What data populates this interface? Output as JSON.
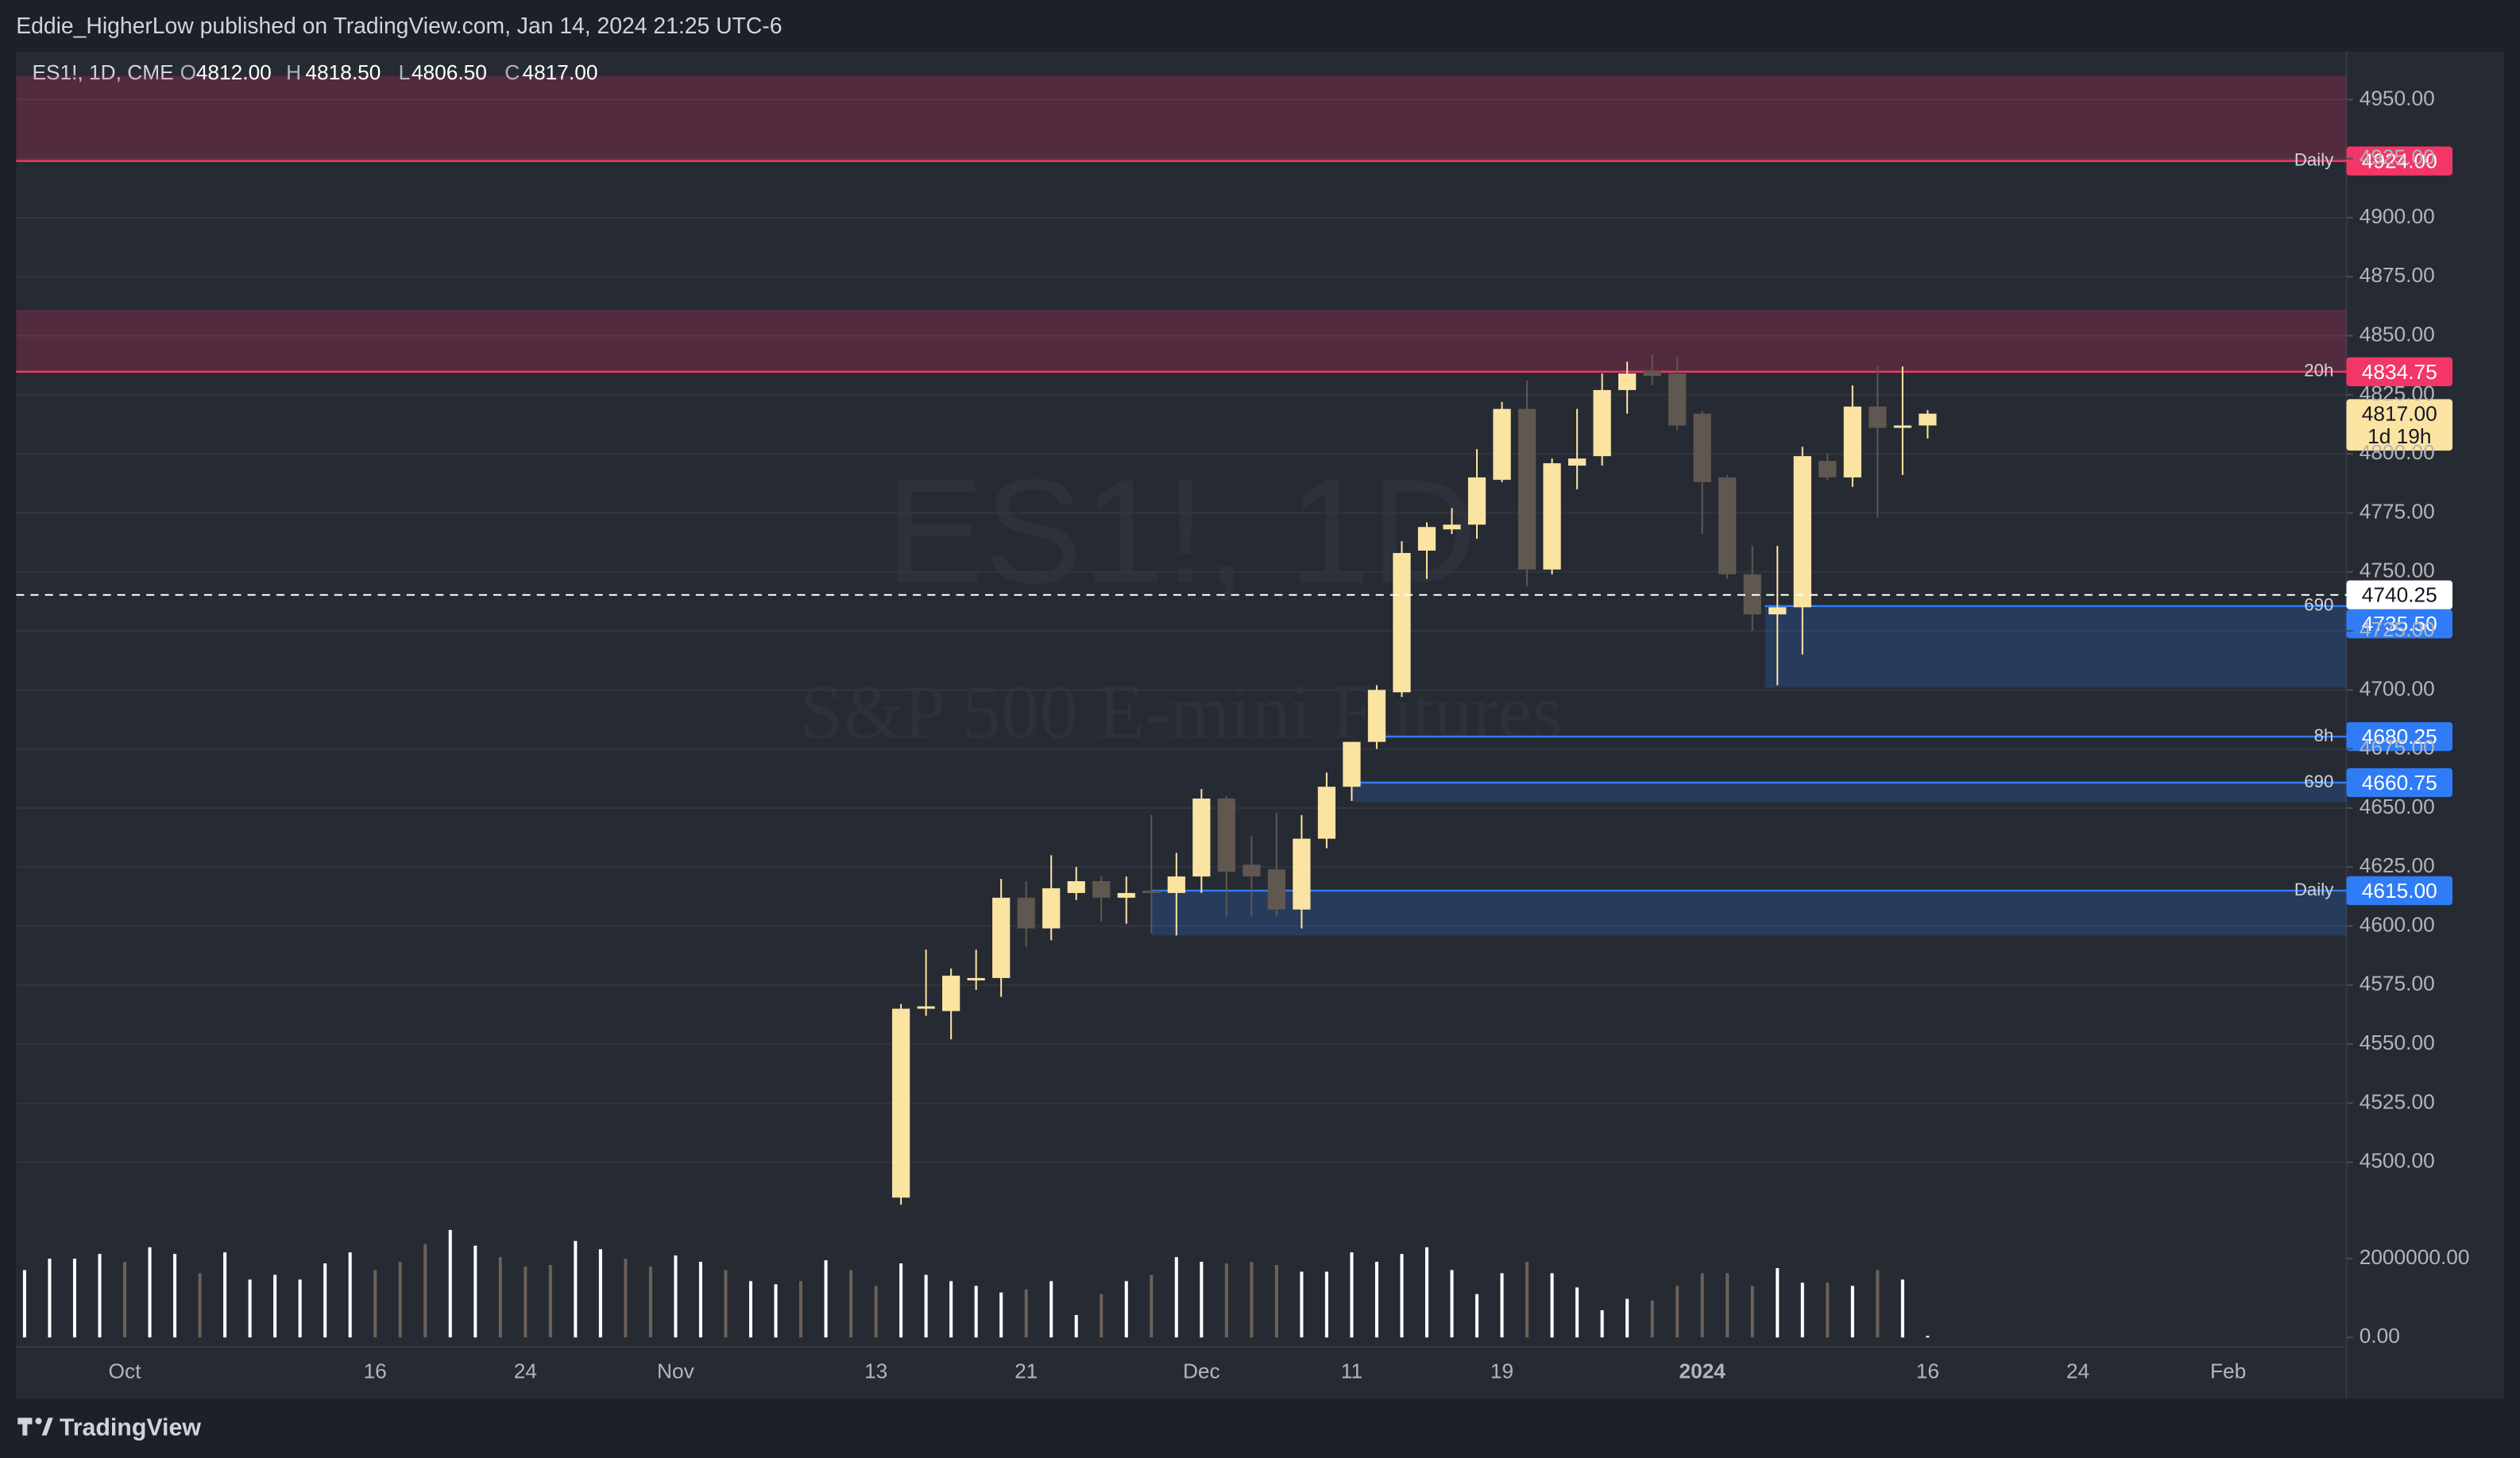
{
  "header": {
    "publisher": "Eddie_HigherLow published on TradingView.com, Jan 14, 2024 21:25 UTC-6"
  },
  "footer": {
    "brand": "TradingView"
  },
  "chart_data": {
    "type": "candlestick",
    "symbol": "ES1!, 1D, CME",
    "legend_items": [
      {
        "key": "O",
        "value_label": "4812.00"
      },
      {
        "key": "H",
        "value_label": "4818.50"
      },
      {
        "key": "L",
        "value_label": "4806.50"
      },
      {
        "key": "C",
        "value_label": "4817.00"
      }
    ],
    "watermark": [
      "ES1!, 1D",
      "S&P 500 E-mini Futures"
    ],
    "categories": [
      null,
      null,
      null,
      null,
      "Oct",
      null,
      null,
      null,
      null,
      null,
      null,
      null,
      null,
      null,
      "16",
      null,
      null,
      null,
      null,
      null,
      "24",
      null,
      null,
      null,
      null,
      null,
      "Nov",
      null,
      null,
      null,
      null,
      null,
      null,
      null,
      "13",
      null,
      null,
      null,
      null,
      null,
      "21",
      null,
      null,
      null,
      null,
      null,
      null,
      "Dec",
      null,
      null,
      null,
      null,
      null,
      "11",
      null,
      null,
      null,
      null,
      null,
      "19",
      null,
      null,
      null,
      null,
      null,
      null,
      null,
      "2024",
      null,
      null,
      null,
      null,
      null,
      null,
      null,
      null,
      "16",
      null,
      null,
      null,
      null,
      null,
      "24",
      null,
      null,
      null,
      null,
      null,
      "Feb",
      null,
      null,
      null,
      null
    ],
    "open": [
      null,
      null,
      null,
      null,
      null,
      null,
      null,
      null,
      null,
      null,
      null,
      null,
      null,
      null,
      null,
      null,
      null,
      null,
      null,
      null,
      null,
      null,
      null,
      null,
      null,
      null,
      null,
      null,
      null,
      null,
      null,
      null,
      null,
      null,
      null,
      4485,
      4565,
      4564,
      4577,
      4578,
      4612,
      4599,
      4614,
      4619,
      4612,
      4615,
      4614,
      4621,
      4654,
      4626,
      4624,
      4607,
      4637,
      4659,
      4678,
      4699,
      4759,
      4768,
      4770,
      4789,
      4819,
      4751,
      4795,
      4799,
      4827,
      4835,
      4834,
      4817,
      4790,
      4749,
      4732,
      4735,
      4797,
      4790,
      4820,
      4811,
      4812,
      null,
      null,
      null,
      null,
      null,
      null,
      null,
      null,
      null,
      null,
      null,
      null,
      null,
      null,
      null,
      null
    ],
    "high": [
      null,
      null,
      null,
      null,
      null,
      null,
      null,
      null,
      null,
      null,
      null,
      null,
      null,
      null,
      null,
      null,
      null,
      null,
      null,
      null,
      null,
      null,
      null,
      null,
      null,
      null,
      null,
      null,
      null,
      null,
      null,
      null,
      null,
      null,
      null,
      4567,
      4590,
      4582,
      4590,
      4620,
      4619,
      4630,
      4625,
      4621,
      4621,
      4647,
      4631,
      4658,
      4655,
      4638,
      4648,
      4647,
      4665,
      4678,
      4702,
      4763,
      4771,
      4777,
      4802,
      4822,
      4831,
      4798,
      4819,
      4834,
      4839,
      4842,
      4841,
      4818,
      4791,
      4761,
      4761,
      4803,
      4800,
      4829,
      4837,
      4837,
      4818.5,
      null,
      null,
      null,
      null,
      null,
      null,
      null,
      null,
      null,
      null,
      null,
      null,
      null,
      null,
      null,
      null
    ],
    "low": [
      null,
      null,
      null,
      null,
      null,
      null,
      null,
      null,
      null,
      null,
      null,
      null,
      null,
      null,
      null,
      null,
      null,
      null,
      null,
      null,
      null,
      null,
      null,
      null,
      null,
      null,
      null,
      null,
      null,
      null,
      null,
      null,
      null,
      null,
      null,
      4482,
      4562,
      4552,
      4573,
      4570,
      4591,
      4594,
      4611,
      4602,
      4601,
      4597,
      4596,
      4614,
      4604,
      4604,
      4604,
      4599,
      4633,
      4653,
      4675,
      4697,
      4747,
      4766,
      4764,
      4788,
      4744,
      4749,
      4785,
      4795,
      4817,
      4829,
      4810,
      4766,
      4747,
      4725,
      4702,
      4715,
      4789,
      4786,
      4773,
      4791,
      4806.5,
      null,
      null,
      null,
      null,
      null,
      null,
      null,
      null,
      null,
      null,
      null,
      null,
      null,
      null,
      null,
      null
    ],
    "close": [
      null,
      null,
      null,
      null,
      null,
      null,
      null,
      null,
      null,
      null,
      null,
      null,
      null,
      null,
      null,
      null,
      null,
      null,
      null,
      null,
      null,
      null,
      null,
      null,
      null,
      null,
      null,
      null,
      null,
      null,
      null,
      null,
      null,
      null,
      null,
      4565,
      4566,
      4579,
      4578,
      4612,
      4599,
      4616,
      4619,
      4612,
      4614,
      4614,
      4621,
      4654,
      4623,
      4621,
      4607,
      4637,
      4659,
      4678,
      4700,
      4758,
      4769,
      4770,
      4790,
      4819,
      4751,
      4796,
      4798,
      4827,
      4834,
      4833,
      4812,
      4788,
      4749,
      4732,
      4735,
      4799,
      4790,
      4820,
      4811,
      4812,
      4817,
      null,
      null,
      null,
      null,
      null,
      null,
      null,
      null,
      null,
      null,
      null,
      null,
      null,
      null,
      null,
      null
    ],
    "up_color": "#fbe3a2",
    "down_color": "#5f5750",
    "ylim": [
      4474.8,
      4970.4
    ],
    "yticks": [
      {
        "value": 4500,
        "label": "4500.00"
      },
      {
        "value": 4525,
        "label": "4525.00"
      },
      {
        "value": 4550,
        "label": "4550.00"
      },
      {
        "value": 4575,
        "label": "4575.00"
      },
      {
        "value": 4600,
        "label": "4600.00"
      },
      {
        "value": 4625,
        "label": "4625.00"
      },
      {
        "value": 4650,
        "label": "4650.00"
      },
      {
        "value": 4675,
        "label": "4675.00"
      },
      {
        "value": 4700,
        "label": "4700.00"
      },
      {
        "value": 4725,
        "label": "4725.00"
      },
      {
        "value": 4750,
        "label": "4750.00"
      },
      {
        "value": 4775,
        "label": "4775.00"
      },
      {
        "value": 4800,
        "label": "4800.00"
      },
      {
        "value": 4825,
        "label": "4825.00"
      },
      {
        "value": 4850,
        "label": "4850.00"
      },
      {
        "value": 4875,
        "label": "4875.00"
      },
      {
        "value": 4900,
        "label": "4900.00"
      },
      {
        "value": 4925,
        "label": "4925.00"
      },
      {
        "value": 4950,
        "label": "4950.00"
      }
    ],
    "grid": true,
    "volume": {
      "values": [
        1710000,
        2000000,
        2000000,
        2120000,
        1920000,
        2290000,
        2120000,
        1630000,
        2160000,
        1470000,
        1590000,
        1470000,
        1880000,
        2160000,
        1710000,
        1920000,
        2370000,
        2730000,
        2330000,
        2040000,
        1800000,
        1840000,
        2450000,
        2240000,
        2000000,
        1800000,
        2080000,
        1920000,
        1710000,
        1430000,
        1350000,
        1430000,
        1960000,
        1710000,
        1310000,
        1880000,
        1590000,
        1430000,
        1310000,
        1140000,
        1220000,
        1430000,
        570000,
        1100000,
        1430000,
        1590000,
        2040000,
        1920000,
        1880000,
        1920000,
        1840000,
        1670000,
        1670000,
        2160000,
        1920000,
        2120000,
        2290000,
        1710000,
        1100000,
        1630000,
        1920000,
        1630000,
        1270000,
        690000,
        980000,
        940000,
        1310000,
        1630000,
        1630000,
        1310000,
        1760000,
        1390000,
        1390000,
        1310000,
        1710000,
        1470000,
        40000,
        null,
        null,
        null,
        null,
        null,
        null,
        null,
        null,
        null,
        null,
        null,
        null,
        null,
        null,
        null,
        null
      ],
      "colors": [
        "#ffffff",
        "#ffffff",
        "#ffffff",
        "#ffffff",
        "#6b6158",
        "#ffffff",
        "#ffffff",
        "#6b6158",
        "#ffffff",
        "#ffffff",
        "#ffffff",
        "#ffffff",
        "#ffffff",
        "#ffffff",
        "#6b6158",
        "#6b6158",
        "#6b6158",
        "#ffffff",
        "#ffffff",
        "#6b6158",
        "#6b6158",
        "#6b6158",
        "#ffffff",
        "#ffffff",
        "#6b6158",
        "#6b6158",
        "#ffffff",
        "#ffffff",
        "#6b6158",
        "#ffffff",
        "#ffffff",
        "#6b6158",
        "#ffffff",
        "#6b6158",
        "#6b6158",
        "#ffffff",
        "#ffffff",
        "#ffffff",
        "#ffffff",
        "#ffffff",
        "#6b6158",
        "#ffffff",
        "#ffffff",
        "#6b6158",
        "#ffffff",
        "#6b6158",
        "#ffffff",
        "#ffffff",
        "#6b6158",
        "#6b6158",
        "#6b6158",
        "#ffffff",
        "#ffffff",
        "#ffffff",
        "#ffffff",
        "#ffffff",
        "#ffffff",
        "#ffffff",
        "#ffffff",
        "#ffffff",
        "#6b6158",
        "#ffffff",
        "#ffffff",
        "#ffffff",
        "#ffffff",
        "#6b6158",
        "#6b6158",
        "#6b6158",
        "#6b6158",
        "#6b6158",
        "#ffffff",
        "#ffffff",
        "#6b6158",
        "#ffffff",
        "#6b6158",
        "#ffffff",
        "#ffffff",
        null,
        null,
        null,
        null,
        null,
        null,
        null,
        null,
        null,
        null,
        null,
        null,
        null,
        null,
        null,
        null
      ],
      "ylim": [
        -244900,
        2857000
      ],
      "yticks": [
        {
          "value": 0,
          "label": "0.00"
        },
        {
          "value": 2000000,
          "label": "2000000.00"
        }
      ]
    },
    "levels": [
      {
        "name": "Daily",
        "value": 4924,
        "label": "4924.00",
        "color": "#f23668",
        "zone": [
          4924,
          4960
        ]
      },
      {
        "name": "20h",
        "value": 4834.75,
        "label": "4834.75",
        "color": "#f23668",
        "zone": [
          4834.75,
          4861
        ]
      },
      {
        "name": "690",
        "value": 4735.5,
        "label": "4735.50",
        "color": "#2f7cf6",
        "zone": [
          4701,
          4735.5
        ]
      },
      {
        "name": "8h",
        "value": 4680.25,
        "label": "4680.25",
        "color": "#2f7cf6"
      },
      {
        "name": "690",
        "value": 4660.75,
        "label": "4660.75",
        "color": "#2f7cf6",
        "zone": [
          4652.5,
          4660.75
        ]
      },
      {
        "name": "Daily",
        "value": 4615,
        "label": "4615.00",
        "color": "#2f7cf6",
        "zone": [
          4596,
          4615
        ]
      }
    ],
    "dashed_line": {
      "value": 4740.25,
      "label": "4740.25"
    },
    "last_price": {
      "value": 4817,
      "label": "4817.00",
      "countdown": "1d 19h"
    }
  }
}
